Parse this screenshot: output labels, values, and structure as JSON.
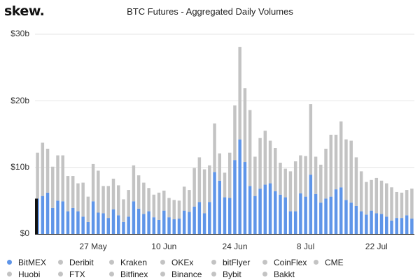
{
  "brand": {
    "name": "skew."
  },
  "colors": {
    "bitmex": "#5f95e8",
    "other": "#c3c3c3",
    "axis": "#111111",
    "grid": "#e6e6e6"
  },
  "chart_data": {
    "type": "bar",
    "title": "BTC Futures - Aggregated Daily Volumes",
    "ytick_labels": [
      "$30b",
      "$20b",
      "$10b",
      "$0"
    ],
    "yticks": [
      30,
      20,
      10,
      0
    ],
    "ylim": [
      0,
      30
    ],
    "xtick_labels": [
      "27 May",
      "10 Jun",
      "24 Jun",
      "8 Jul",
      "22 Jul"
    ],
    "xtick_index": [
      11,
      25,
      39,
      53,
      67
    ],
    "stacked": true,
    "series": [
      {
        "name": "BitMEX",
        "values": [
          5.3,
          5.7,
          6.2,
          3.9,
          5.0,
          4.9,
          3.4,
          3.9,
          3.4,
          2.6,
          1.8,
          4.9,
          3.2,
          3.1,
          2.4,
          3.7,
          2.8,
          1.8,
          2.6,
          4.9,
          3.8,
          3.0,
          3.4,
          2.5,
          2.1,
          3.5,
          2.5,
          2.2,
          2.3,
          3.5,
          3.3,
          4.1,
          4.8,
          3.1,
          4.8,
          9.3,
          8.0,
          5.5,
          5.4,
          11.1,
          14.2,
          10.8,
          7.2,
          5.7,
          6.8,
          7.4,
          7.6,
          6.4,
          5.9,
          5.5,
          3.4,
          3.4,
          6.1,
          5.6,
          8.9,
          6.0,
          4.7,
          5.3,
          5.6,
          6.7,
          7.0,
          5.1,
          4.7,
          4.2,
          3.4,
          2.9,
          3.5,
          3.1,
          3.0,
          2.6,
          2.0,
          2.4,
          2.4,
          2.8,
          2.3
        ]
      },
      {
        "name": "Deribit / Kraken / OKEx / bitFlyer / CoinFlex / CME / Huobi / FTX / Bitfinex / Binance / Bybit / Bakkt",
        "values": [
          6.9,
          8.0,
          6.6,
          6.2,
          6.8,
          6.9,
          5.3,
          4.8,
          4.2,
          5.1,
          3.8,
          5.6,
          6.3,
          4.1,
          4.8,
          4.6,
          4.5,
          3.4,
          4.0,
          5.4,
          5.0,
          4.7,
          3.5,
          3.4,
          4.1,
          3.0,
          2.9,
          2.9,
          2.7,
          3.6,
          3.3,
          5.8,
          6.7,
          6.6,
          5.5,
          7.3,
          4.1,
          3.7,
          6.8,
          8.2,
          13.9,
          11.1,
          11.4,
          5.9,
          7.6,
          8.1,
          6.4,
          6.5,
          4.8,
          4.3,
          6.0,
          7.5,
          5.7,
          6.1,
          10.6,
          5.6,
          5.7,
          7.5,
          9.3,
          8.2,
          9.9,
          9.1,
          9.3,
          7.3,
          6.0,
          4.9,
          4.6,
          5.3,
          5.0,
          5.0,
          5.0,
          3.9,
          3.8,
          3.8,
          4.5
        ]
      }
    ],
    "highlight_first_bar": true,
    "legend_position": "bottom",
    "legend": [
      {
        "label": "BitMEX",
        "color": "#5f95e8"
      },
      {
        "label": "Deribit",
        "color": "#c3c3c3"
      },
      {
        "label": "Kraken",
        "color": "#c3c3c3"
      },
      {
        "label": "OKEx",
        "color": "#c3c3c3"
      },
      {
        "label": "bitFlyer",
        "color": "#c3c3c3"
      },
      {
        "label": "CoinFlex",
        "color": "#c3c3c3"
      },
      {
        "label": "CME",
        "color": "#c3c3c3"
      },
      {
        "label": "Huobi",
        "color": "#c3c3c3"
      },
      {
        "label": "FTX",
        "color": "#c3c3c3"
      },
      {
        "label": "Bitfinex",
        "color": "#c3c3c3"
      },
      {
        "label": "Binance",
        "color": "#c3c3c3"
      },
      {
        "label": "Bybit",
        "color": "#c3c3c3"
      },
      {
        "label": "Bakkt",
        "color": "#c3c3c3"
      }
    ]
  }
}
